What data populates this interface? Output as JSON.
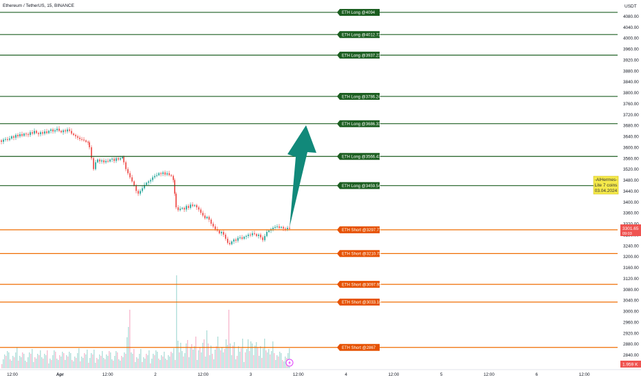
{
  "header": {
    "symbol_title": "Ethereum / TetherUS, 15, BINANCE"
  },
  "price_axis": {
    "unit": "USDT",
    "ticks": [
      "4080.00",
      "4040.00",
      "4000.00",
      "3960.00",
      "3920.00",
      "3880.00",
      "3840.00",
      "3800.00",
      "3760.00",
      "3720.00",
      "3680.00",
      "3640.00",
      "3600.00",
      "3560.00",
      "3520.00",
      "3480.00",
      "3440.00",
      "3400.00",
      "3360.00",
      "3320.00",
      "3280.00",
      "3240.00",
      "3200.00",
      "3160.00",
      "3120.00",
      "3080.00",
      "3040.00",
      "3000.00",
      "2960.00",
      "2920.00",
      "2880.00",
      "2840.00"
    ],
    "ylim": [
      2810,
      4100
    ],
    "current_price": "3301.65",
    "current_countdown": "09:03",
    "volume_label": "1.959 K"
  },
  "time_axis": {
    "ticks": [
      {
        "label": "12:00",
        "bold": false,
        "x_index": 0
      },
      {
        "label": "Apr",
        "bold": true,
        "x_index": 1
      },
      {
        "label": "12:00",
        "bold": false,
        "x_index": 2
      },
      {
        "label": "2",
        "bold": false,
        "x_index": 3
      },
      {
        "label": "12:00",
        "bold": false,
        "x_index": 4
      },
      {
        "label": "3",
        "bold": false,
        "x_index": 5
      },
      {
        "label": "12:00",
        "bold": false,
        "x_index": 6
      },
      {
        "label": "4",
        "bold": false,
        "x_index": 7
      },
      {
        "label": "12:00",
        "bold": false,
        "x_index": 8
      },
      {
        "label": "5",
        "bold": false,
        "x_index": 9
      },
      {
        "label": "12:00",
        "bold": false,
        "x_index": 10
      },
      {
        "label": "6",
        "bold": false,
        "x_index": 11
      },
      {
        "label": "12:00",
        "bold": false,
        "x_index": 12
      }
    ]
  },
  "levels": {
    "long": [
      {
        "label": "ETH Long @4094",
        "price": 4094
      },
      {
        "label": "ETH Long @4012.72",
        "price": 4012.72
      },
      {
        "label": "ETH Long @3937.23",
        "price": 3937.23
      },
      {
        "label": "ETH Long @3786.24",
        "price": 3786.24
      },
      {
        "label": "ETH Long @3686.33",
        "price": 3686.33
      },
      {
        "label": "ETH Long @3566.43",
        "price": 3566.43
      },
      {
        "label": "ETH Long @3459.54",
        "price": 3459.54
      }
    ],
    "short": [
      {
        "label": "ETH Short @3297.77",
        "price": 3297.77
      },
      {
        "label": "ETH Short @3210.78",
        "price": 3210.78
      },
      {
        "label": "ETH Short @3097.95",
        "price": 3097.95
      },
      {
        "label": "ETH Short @3033.16",
        "price": 3033.16
      },
      {
        "label": "ETH Short @2867",
        "price": 2867
      }
    ]
  },
  "note_box": {
    "lines": [
      "-AlHermes-",
      "Lite 7 coins",
      "03.04.2024"
    ]
  },
  "colors": {
    "long_line": "#1b5e20",
    "long_label_bg": "#1b5e20",
    "short_line": "#ef6c00",
    "short_label_bg": "#e65100",
    "candle_up": "#26a69a",
    "candle_down": "#ef5350",
    "vol_up": "#b2dfdb",
    "vol_down": "#f8bbd0",
    "arrow": "#11897a",
    "note_bg": "#f5e94a",
    "price_badge": "#ef5350"
  },
  "icons": {
    "replay": "lightning-icon"
  },
  "chart_data": {
    "type": "candlestick",
    "price_path": [
      [
        0,
        3625
      ],
      [
        2,
        3620
      ],
      [
        5,
        3628
      ],
      [
        8,
        3630
      ],
      [
        11,
        3627
      ],
      [
        14,
        3632
      ],
      [
        17,
        3640
      ],
      [
        20,
        3635
      ],
      [
        23,
        3645
      ],
      [
        26,
        3640
      ],
      [
        29,
        3648
      ],
      [
        32,
        3642
      ],
      [
        35,
        3650
      ],
      [
        38,
        3648
      ],
      [
        41,
        3645
      ],
      [
        44,
        3655
      ],
      [
        47,
        3650
      ],
      [
        50,
        3660
      ],
      [
        53,
        3652
      ],
      [
        56,
        3648
      ],
      [
        59,
        3655
      ],
      [
        62,
        3650
      ],
      [
        65,
        3658
      ],
      [
        68,
        3652
      ],
      [
        71,
        3660
      ],
      [
        74,
        3665
      ],
      [
        77,
        3658
      ],
      [
        80,
        3662
      ],
      [
        83,
        3668
      ],
      [
        86,
        3660
      ],
      [
        89,
        3655
      ],
      [
        92,
        3662
      ],
      [
        95,
        3658
      ],
      [
        98,
        3665
      ],
      [
        101,
        3660
      ],
      [
        104,
        3650
      ],
      [
        107,
        3645
      ],
      [
        110,
        3640
      ],
      [
        113,
        3635
      ],
      [
        116,
        3630
      ],
      [
        119,
        3628
      ],
      [
        122,
        3625
      ],
      [
        125,
        3620
      ],
      [
        128,
        3618
      ],
      [
        130,
        3600
      ],
      [
        133,
        3560
      ],
      [
        136,
        3520
      ],
      [
        139,
        3545
      ],
      [
        142,
        3555
      ],
      [
        145,
        3548
      ],
      [
        148,
        3552
      ],
      [
        151,
        3545
      ],
      [
        154,
        3550
      ],
      [
        157,
        3548
      ],
      [
        160,
        3555
      ],
      [
        163,
        3558
      ],
      [
        166,
        3550
      ],
      [
        169,
        3560
      ],
      [
        172,
        3555
      ],
      [
        175,
        3560
      ],
      [
        178,
        3565
      ],
      [
        180,
        3545
      ],
      [
        183,
        3520
      ],
      [
        186,
        3505
      ],
      [
        189,
        3490
      ],
      [
        192,
        3475
      ],
      [
        195,
        3460
      ],
      [
        198,
        3440
      ],
      [
        201,
        3430
      ],
      [
        204,
        3440
      ],
      [
        207,
        3450
      ],
      [
        210,
        3462
      ],
      [
        213,
        3470
      ],
      [
        216,
        3475
      ],
      [
        219,
        3480
      ],
      [
        222,
        3490
      ],
      [
        225,
        3495
      ],
      [
        228,
        3498
      ],
      [
        231,
        3505
      ],
      [
        234,
        3502
      ],
      [
        237,
        3508
      ],
      [
        240,
        3500
      ],
      [
        243,
        3505
      ],
      [
        246,
        3498
      ],
      [
        249,
        3495
      ],
      [
        252,
        3480
      ],
      [
        254,
        3430
      ],
      [
        256,
        3380
      ],
      [
        259,
        3370
      ],
      [
        262,
        3375
      ],
      [
        265,
        3378
      ],
      [
        268,
        3372
      ],
      [
        271,
        3385
      ],
      [
        274,
        3378
      ],
      [
        277,
        3390
      ],
      [
        280,
        3385
      ],
      [
        283,
        3388
      ],
      [
        286,
        3380
      ],
      [
        289,
        3372
      ],
      [
        292,
        3360
      ],
      [
        295,
        3350
      ],
      [
        298,
        3340
      ],
      [
        301,
        3345
      ],
      [
        304,
        3335
      ],
      [
        307,
        3320
      ],
      [
        310,
        3310
      ],
      [
        313,
        3300
      ],
      [
        316,
        3295
      ],
      [
        319,
        3285
      ],
      [
        322,
        3290
      ],
      [
        325,
        3280
      ],
      [
        328,
        3265
      ],
      [
        331,
        3250
      ],
      [
        334,
        3245
      ],
      [
        337,
        3255
      ],
      [
        340,
        3262
      ],
      [
        343,
        3258
      ],
      [
        346,
        3268
      ],
      [
        349,
        3270
      ],
      [
        352,
        3265
      ],
      [
        355,
        3272
      ],
      [
        358,
        3275
      ],
      [
        361,
        3280
      ],
      [
        364,
        3278
      ],
      [
        367,
        3285
      ],
      [
        370,
        3282
      ],
      [
        373,
        3275
      ],
      [
        376,
        3280
      ],
      [
        379,
        3270
      ],
      [
        382,
        3260
      ],
      [
        385,
        3275
      ],
      [
        388,
        3290
      ],
      [
        391,
        3295
      ],
      [
        394,
        3300
      ],
      [
        397,
        3305
      ],
      [
        400,
        3308
      ],
      [
        403,
        3310
      ],
      [
        406,
        3305
      ],
      [
        409,
        3308
      ],
      [
        412,
        3302
      ],
      [
        415,
        3300
      ],
      [
        418,
        3305
      ],
      [
        421,
        3301.65
      ]
    ],
    "ylim": [
      2810,
      4100
    ]
  }
}
